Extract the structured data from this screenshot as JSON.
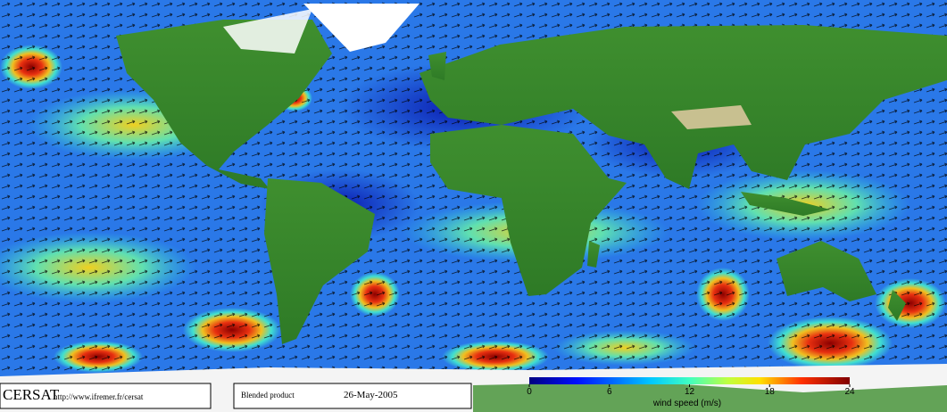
{
  "footer": {
    "logo": "CERSAT",
    "url": "http://www.ifremer.fr/cersat",
    "product": "Blended product",
    "date": "26-May-2005"
  },
  "colorbar": {
    "label": "wind speed (m/s)",
    "lim": [
      0,
      24
    ],
    "ticks": [
      0,
      6,
      12,
      18,
      24
    ]
  }
}
